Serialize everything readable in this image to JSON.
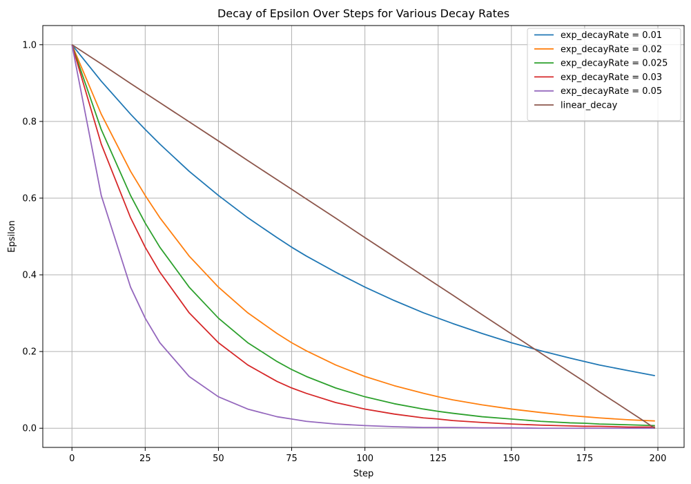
{
  "chart_data": {
    "type": "line",
    "title": "Decay of Epsilon Over Steps for Various Decay Rates",
    "xlabel": "Step",
    "ylabel": "Epsilon",
    "xlim": [
      -9.95,
      208.95
    ],
    "ylim": [
      -0.05,
      1.05
    ],
    "xticks": [
      0,
      25,
      50,
      75,
      100,
      125,
      150,
      175,
      200
    ],
    "yticks": [
      0.0,
      0.2,
      0.4,
      0.6,
      0.8,
      1.0
    ],
    "xtick_labels": [
      "0",
      "25",
      "50",
      "75",
      "100",
      "125",
      "150",
      "175",
      "200"
    ],
    "ytick_labels": [
      "0.0",
      "0.2",
      "0.4",
      "0.6",
      "0.8",
      "1.0"
    ],
    "grid": true,
    "legend_position": "top-right",
    "x": [
      0,
      10,
      20,
      25,
      30,
      40,
      50,
      60,
      70,
      75,
      80,
      90,
      100,
      110,
      120,
      125,
      130,
      140,
      150,
      160,
      170,
      175,
      180,
      190,
      199
    ],
    "series": [
      {
        "name": "exp_decayRate = 0.01",
        "color": "#1f77b4",
        "values": [
          1.0,
          0.905,
          0.819,
          0.779,
          0.741,
          0.67,
          0.607,
          0.549,
          0.497,
          0.472,
          0.449,
          0.407,
          0.368,
          0.333,
          0.301,
          0.287,
          0.273,
          0.247,
          0.223,
          0.202,
          0.183,
          0.174,
          0.165,
          0.15,
          0.137
        ]
      },
      {
        "name": "exp_decayRate = 0.02",
        "color": "#ff7f0e",
        "values": [
          1.0,
          0.819,
          0.67,
          0.607,
          0.549,
          0.449,
          0.368,
          0.301,
          0.247,
          0.223,
          0.202,
          0.165,
          0.135,
          0.111,
          0.091,
          0.082,
          0.074,
          0.061,
          0.05,
          0.041,
          0.033,
          0.03,
          0.027,
          0.022,
          0.019
        ]
      },
      {
        "name": "exp_decayRate = 0.025",
        "color": "#2ca02c",
        "values": [
          1.0,
          0.779,
          0.607,
          0.535,
          0.472,
          0.368,
          0.287,
          0.223,
          0.174,
          0.153,
          0.135,
          0.105,
          0.082,
          0.064,
          0.05,
          0.044,
          0.039,
          0.03,
          0.024,
          0.018,
          0.014,
          0.013,
          0.011,
          0.009,
          0.007
        ]
      },
      {
        "name": "exp_decayRate = 0.03",
        "color": "#d62728",
        "values": [
          1.0,
          0.741,
          0.549,
          0.472,
          0.407,
          0.301,
          0.223,
          0.165,
          0.122,
          0.105,
          0.091,
          0.067,
          0.05,
          0.037,
          0.027,
          0.024,
          0.02,
          0.015,
          0.011,
          0.008,
          0.006,
          0.005,
          0.005,
          0.003,
          0.003
        ]
      },
      {
        "name": "exp_decayRate = 0.05",
        "color": "#9467bd",
        "values": [
          1.0,
          0.607,
          0.368,
          0.287,
          0.223,
          0.135,
          0.082,
          0.05,
          0.03,
          0.024,
          0.018,
          0.011,
          0.007,
          0.004,
          0.002,
          0.002,
          0.002,
          0.001,
          0.001,
          0.0,
          0.0,
          0.0,
          0.0,
          0.0,
          0.0
        ]
      },
      {
        "name": "linear_decay",
        "color": "#8c564b",
        "values": [
          1.0,
          0.95,
          0.899,
          0.874,
          0.849,
          0.799,
          0.749,
          0.698,
          0.648,
          0.623,
          0.598,
          0.548,
          0.497,
          0.447,
          0.397,
          0.372,
          0.347,
          0.296,
          0.246,
          0.196,
          0.146,
          0.121,
          0.095,
          0.045,
          0.0
        ]
      }
    ]
  }
}
